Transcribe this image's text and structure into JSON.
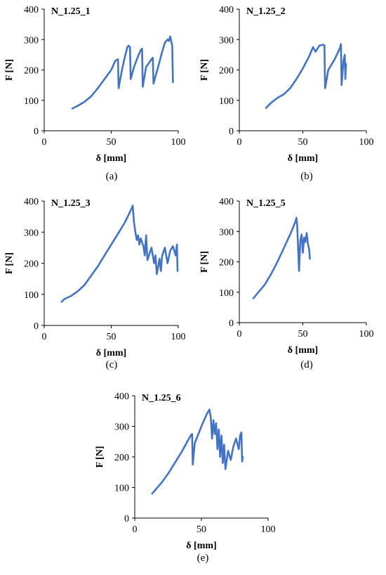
{
  "figure": {
    "line_color": "#4472C4",
    "panels_shared": {
      "xlabel": "δ [mm]",
      "ylabel": "F [N]",
      "xlim": [
        0,
        100
      ],
      "ylim": [
        0,
        400
      ],
      "xticks": [
        "0",
        "50",
        "100"
      ],
      "yticks": [
        "0",
        "100",
        "200",
        "300",
        "400"
      ]
    }
  },
  "chart_data": [
    {
      "type": "line",
      "title": "N_1.25_1",
      "caption": "(a)",
      "xlabel": "δ [mm]",
      "ylabel": "F [N]",
      "xlim": [
        0,
        100
      ],
      "ylim": [
        0,
        400
      ],
      "grid": false,
      "series": [
        {
          "x": [
            21,
            25,
            30,
            35,
            40,
            45,
            50,
            53,
            55,
            55.5,
            58,
            60,
            62,
            63,
            64,
            64.5,
            67,
            70,
            72,
            73,
            73.5,
            76,
            80,
            81,
            81.5,
            85,
            88,
            90,
            92,
            93,
            94,
            95,
            95.5,
            96
          ],
          "y": [
            73,
            82,
            95,
            113,
            140,
            170,
            200,
            230,
            235,
            140,
            200,
            240,
            275,
            280,
            275,
            170,
            210,
            245,
            265,
            270,
            145,
            210,
            235,
            240,
            155,
            210,
            260,
            290,
            300,
            295,
            310,
            290,
            280,
            160
          ]
        }
      ]
    },
    {
      "type": "line",
      "title": "N_1.25_2",
      "caption": "(b)",
      "xlabel": "δ [mm]",
      "ylabel": "F [N]",
      "xlim": [
        0,
        100
      ],
      "ylim": [
        0,
        400
      ],
      "grid": false,
      "series": [
        {
          "x": [
            21,
            25,
            30,
            35,
            40,
            45,
            50,
            55,
            58,
            60,
            63,
            66,
            67,
            67.5,
            70,
            75,
            79,
            80,
            80.5,
            82,
            83,
            83.5,
            84
          ],
          "y": [
            75,
            92,
            108,
            120,
            140,
            170,
            205,
            245,
            275,
            260,
            280,
            283,
            280,
            140,
            200,
            235,
            270,
            285,
            150,
            230,
            250,
            170,
            220
          ]
        }
      ]
    },
    {
      "type": "line",
      "title": "N_1.25_3",
      "caption": "(c)",
      "xlabel": "δ [mm]",
      "ylabel": "F [N]",
      "xlim": [
        0,
        100
      ],
      "ylim": [
        0,
        400
      ],
      "grid": false,
      "series": [
        {
          "x": [
            13,
            15,
            20,
            25,
            30,
            35,
            40,
            45,
            50,
            55,
            60,
            64,
            66,
            67,
            68,
            69,
            70,
            71,
            72,
            74,
            75,
            76,
            77,
            80,
            82,
            83,
            84,
            86,
            87,
            88,
            90,
            92,
            94,
            96,
            98,
            99,
            99.5
          ],
          "y": [
            76,
            85,
            95,
            110,
            130,
            160,
            190,
            225,
            260,
            295,
            330,
            365,
            385,
            330,
            300,
            275,
            290,
            260,
            280,
            255,
            225,
            290,
            210,
            250,
            200,
            225,
            165,
            215,
            175,
            225,
            250,
            200,
            240,
            255,
            225,
            260,
            175
          ]
        }
      ]
    },
    {
      "type": "line",
      "title": "N_1.25_5",
      "caption": "(d)",
      "xlabel": "δ [mm]",
      "ylabel": "F [N]",
      "xlim": [
        0,
        100
      ],
      "ylim": [
        0,
        400
      ],
      "grid": false,
      "series": [
        {
          "x": [
            11,
            15,
            20,
            25,
            30,
            35,
            40,
            44,
            45,
            45.5,
            46,
            47,
            48,
            49,
            50,
            51,
            52,
            53,
            54,
            55,
            55.5
          ],
          "y": [
            80,
            100,
            125,
            160,
            200,
            245,
            290,
            330,
            345,
            320,
            275,
            170,
            270,
            290,
            230,
            280,
            265,
            295,
            260,
            240,
            210
          ]
        }
      ]
    },
    {
      "type": "line",
      "title": "N_1.25_6",
      "caption": "(e)",
      "xlabel": "δ [mm]",
      "ylabel": "F [N]",
      "xlim": [
        0,
        100
      ],
      "ylim": [
        0,
        400
      ],
      "grid": false,
      "series": [
        {
          "x": [
            13,
            15,
            20,
            25,
            30,
            35,
            40,
            42,
            43,
            43.5,
            45,
            50,
            54,
            56,
            57,
            58,
            59,
            60,
            61,
            62,
            63,
            64,
            65,
            66,
            67,
            68,
            70,
            72,
            74,
            76,
            78,
            79,
            80,
            80.5,
            81
          ],
          "y": [
            80,
            90,
            115,
            145,
            180,
            215,
            255,
            270,
            275,
            175,
            245,
            300,
            340,
            355,
            330,
            260,
            320,
            275,
            310,
            225,
            290,
            200,
            270,
            180,
            240,
            160,
            220,
            190,
            235,
            260,
            225,
            270,
            280,
            185,
            200
          ]
        }
      ]
    }
  ]
}
